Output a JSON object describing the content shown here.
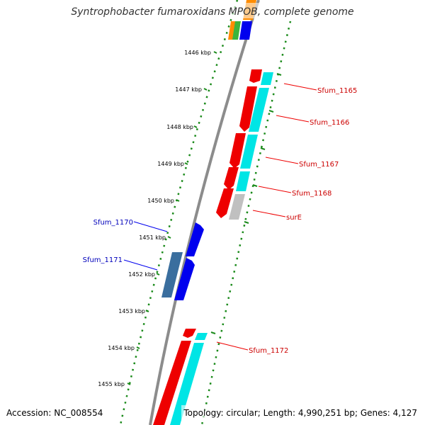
{
  "title": "Syntrophobacter fumaroxidans MPOB, complete genome",
  "accession": "Accession: NC_008554",
  "summary": "Topology: circular; Length: 4,990,251 bp; Genes: 4,127",
  "colors": {
    "backbone": "#8c8c8c",
    "ruler": "#1a8a1a",
    "red_gene": "#ee0000",
    "cyan_gene": "#00e5e5",
    "blue_gene": "#0000ee",
    "steel_gene": "#3a6e9e",
    "grey_gene": "#c0c0c0",
    "label_red": "#cc0000",
    "label_blue": "#0000bb"
  },
  "ticks": [
    "1446 kbp",
    "1447 kbp",
    "1448 kbp",
    "1449 kbp",
    "1450 kbp",
    "1451 kbp",
    "1452 kbp",
    "1453 kbp",
    "1454 kbp",
    "1455 kbp"
  ],
  "gene_labels": [
    {
      "text": "Sfum_1165",
      "strand": "reverse"
    },
    {
      "text": "Sfum_1166",
      "strand": "reverse"
    },
    {
      "text": "Sfum_1167",
      "strand": "reverse"
    },
    {
      "text": "Sfum_1168",
      "strand": "reverse"
    },
    {
      "text": "surE",
      "strand": "reverse"
    },
    {
      "text": "Sfum_1170",
      "strand": "forward"
    },
    {
      "text": "Sfum_1171",
      "strand": "forward"
    },
    {
      "text": "Sfum_1172",
      "strand": "reverse"
    }
  ]
}
